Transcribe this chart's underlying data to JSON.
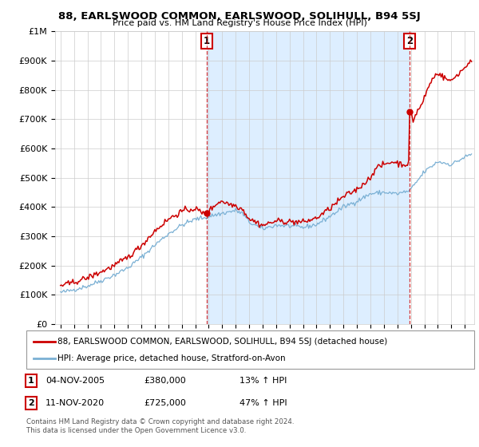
{
  "title": "88, EARLSWOOD COMMON, EARLSWOOD, SOLIHULL, B94 5SJ",
  "subtitle": "Price paid vs. HM Land Registry's House Price Index (HPI)",
  "legend_line1": "88, EARLSWOOD COMMON, EARLSWOOD, SOLIHULL, B94 5SJ (detached house)",
  "legend_line2": "HPI: Average price, detached house, Stratford-on-Avon",
  "annotation1_label": "1",
  "annotation1_date": "04-NOV-2005",
  "annotation1_price": "£380,000",
  "annotation1_hpi": "13% ↑ HPI",
  "annotation2_label": "2",
  "annotation2_date": "11-NOV-2020",
  "annotation2_price": "£725,000",
  "annotation2_hpi": "47% ↑ HPI",
  "footer1": "Contains HM Land Registry data © Crown copyright and database right 2024.",
  "footer2": "This data is licensed under the Open Government Licence v3.0.",
  "red_color": "#cc0000",
  "blue_color": "#7ab0d4",
  "shade_color": "#ddeeff",
  "background_color": "#ffffff",
  "grid_color": "#cccccc",
  "ylim": [
    0,
    1000000
  ],
  "yticks": [
    0,
    100000,
    200000,
    300000,
    400000,
    500000,
    600000,
    700000,
    800000,
    900000,
    1000000
  ],
  "sale1_month": 130,
  "sale2_month": 311,
  "sale1_val": 380000,
  "sale2_val": 725000
}
